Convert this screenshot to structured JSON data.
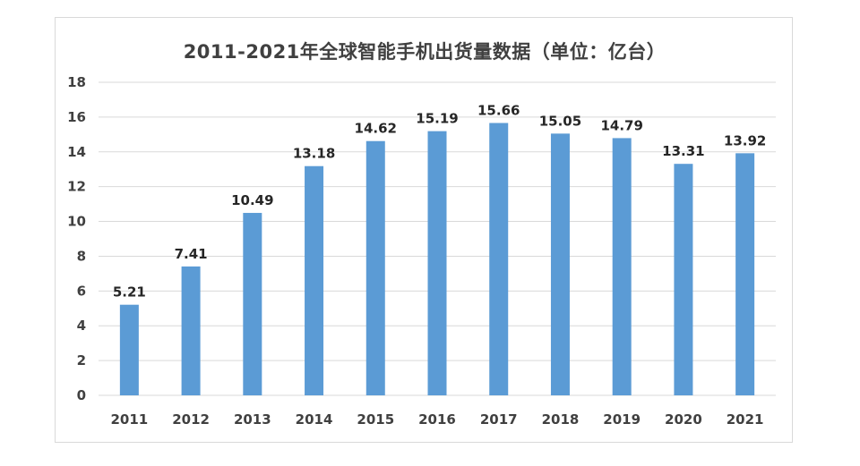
{
  "chart_data": {
    "type": "bar",
    "title": "2011-2021年全球智能手机出货量数据（单位：亿台）",
    "xlabel": "",
    "ylabel": "",
    "categories": [
      "2011",
      "2012",
      "2013",
      "2014",
      "2015",
      "2016",
      "2017",
      "2018",
      "2019",
      "2020",
      "2021"
    ],
    "values": [
      5.21,
      7.41,
      10.49,
      13.18,
      14.62,
      15.19,
      15.66,
      15.05,
      14.79,
      13.31,
      13.92
    ],
    "data_labels": [
      "5.21",
      "7.41",
      "10.49",
      "13.18",
      "14.62",
      "15.19",
      "15.66",
      "15.05",
      "14.79",
      "13.31",
      "13.92"
    ],
    "ylim": [
      0,
      18
    ],
    "yticks": [
      "0",
      "2",
      "4",
      "6",
      "8",
      "10",
      "12",
      "14",
      "16",
      "18"
    ],
    "grid": true,
    "legend": "none",
    "colors": {
      "bar": "#5b9bd5",
      "grid": "#d9d9d9",
      "text": "#404040"
    }
  }
}
